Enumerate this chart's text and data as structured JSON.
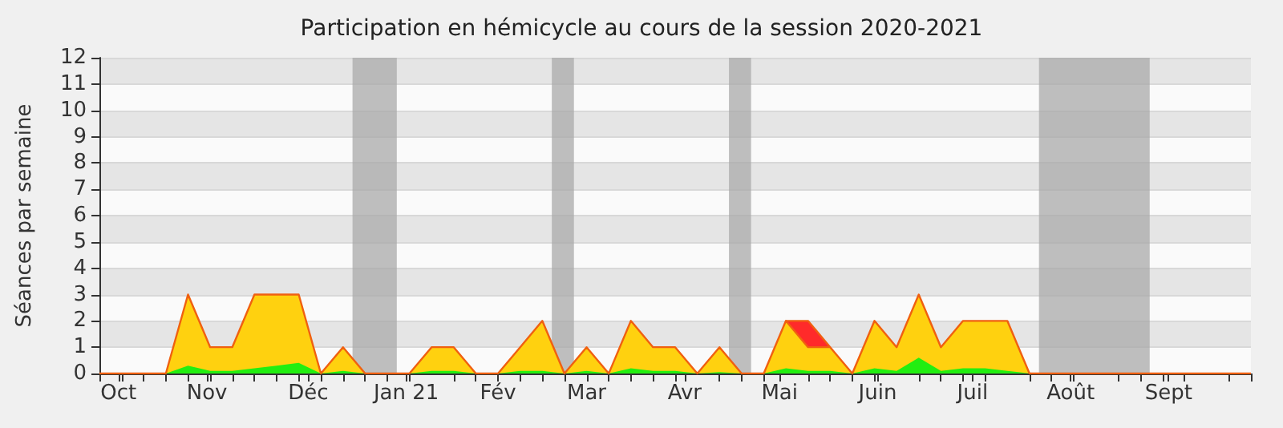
{
  "chart_data": {
    "type": "area",
    "stacked": true,
    "title": "Participation en hémicycle au cours de la session 2020-2021",
    "ylabel": "Séances par semaine",
    "x": [
      "2020-09-28",
      "2020-10-05",
      "2020-10-12",
      "2020-10-19",
      "2020-10-26",
      "2020-11-02",
      "2020-11-09",
      "2020-11-16",
      "2020-11-23",
      "2020-11-30",
      "2020-12-07",
      "2020-12-14",
      "2020-12-21",
      "2020-12-28",
      "2021-01-04",
      "2021-01-11",
      "2021-01-18",
      "2021-01-25",
      "2021-02-01",
      "2021-02-08",
      "2021-02-15",
      "2021-02-22",
      "2021-03-01",
      "2021-03-08",
      "2021-03-15",
      "2021-03-22",
      "2021-03-29",
      "2021-04-05",
      "2021-04-12",
      "2021-04-19",
      "2021-04-26",
      "2021-05-03",
      "2021-05-10",
      "2021-05-17",
      "2021-05-24",
      "2021-05-31",
      "2021-06-07",
      "2021-06-14",
      "2021-06-21",
      "2021-06-28",
      "2021-07-05",
      "2021-07-12",
      "2021-07-19",
      "2021-07-26",
      "2021-08-02",
      "2021-08-09",
      "2021-08-16",
      "2021-08-23",
      "2021-08-30",
      "2021-09-06",
      "2021-09-13",
      "2021-09-20",
      "2021-09-27"
    ],
    "series": [
      {
        "color": "#22ee11",
        "values": [
          0,
          0,
          0,
          0,
          0.3,
          0.1,
          0.1,
          0.2,
          0.3,
          0.4,
          0,
          0.1,
          0,
          0,
          0,
          0.1,
          0.1,
          0,
          0,
          0.1,
          0.1,
          0,
          0.1,
          0,
          0.2,
          0.1,
          0.1,
          0,
          0.05,
          0,
          0,
          0.2,
          0.1,
          0.1,
          0,
          0.2,
          0.1,
          0.6,
          0.1,
          0.2,
          0.2,
          0.1,
          0,
          0,
          0,
          0,
          0,
          0,
          0,
          0,
          0,
          0,
          0
        ]
      },
      {
        "color": "#ffd10f",
        "values": [
          0,
          0,
          0,
          0,
          2.7,
          0.9,
          0.9,
          2.8,
          2.7,
          2.6,
          0,
          0.9,
          0,
          0,
          0,
          0.9,
          0.9,
          0,
          0,
          0.9,
          1.9,
          0,
          0.9,
          0,
          1.8,
          0.9,
          0.9,
          0,
          0.95,
          0,
          0,
          1.8,
          0.9,
          0.9,
          0,
          1.8,
          0.9,
          2.4,
          0.9,
          1.8,
          1.8,
          1.9,
          0,
          0,
          0,
          0,
          0,
          0,
          0,
          0,
          0,
          0,
          0
        ]
      },
      {
        "color": "#ff2a2a",
        "values": [
          null,
          null,
          null,
          null,
          null,
          null,
          null,
          null,
          null,
          null,
          null,
          null,
          null,
          null,
          null,
          null,
          null,
          null,
          null,
          null,
          null,
          null,
          null,
          null,
          null,
          null,
          null,
          null,
          null,
          null,
          null,
          0,
          1,
          0,
          null,
          null,
          null,
          null,
          null,
          null,
          null,
          null,
          null,
          null,
          null,
          null,
          null,
          null,
          null,
          null,
          null,
          null,
          null
        ]
      }
    ],
    "xlim": [
      "2020-09-28",
      "2021-09-27"
    ],
    "xticks": [
      {
        "value": "2020-09-28",
        "label": null
      },
      {
        "value": "2020-10-05",
        "label": null
      },
      {
        "value": "2020-10-04",
        "label": "Oct"
      },
      {
        "value": "2020-10-12",
        "label": null
      },
      {
        "value": "2020-10-19",
        "label": null
      },
      {
        "value": "2020-10-26",
        "label": null
      },
      {
        "value": "2020-11-02",
        "label": null
      },
      {
        "value": "2020-11-01",
        "label": "Nov"
      },
      {
        "value": "2020-11-09",
        "label": null
      },
      {
        "value": "2020-11-16",
        "label": null
      },
      {
        "value": "2020-11-23",
        "label": null
      },
      {
        "value": "2020-11-30",
        "label": null
      },
      {
        "value": "2020-12-07",
        "label": null
      },
      {
        "value": "2020-12-03",
        "label": "Déc"
      },
      {
        "value": "2020-12-14",
        "label": null
      },
      {
        "value": "2020-12-21",
        "label": null
      },
      {
        "value": "2020-12-28",
        "label": null
      },
      {
        "value": "2021-01-04",
        "label": null
      },
      {
        "value": "2021-01-03",
        "label": "Jan 21"
      },
      {
        "value": "2021-01-18",
        "label": null
      },
      {
        "value": "2021-01-25",
        "label": null
      },
      {
        "value": "2021-02-01",
        "label": "Fév"
      },
      {
        "value": "2021-02-08",
        "label": null
      },
      {
        "value": "2021-02-15",
        "label": null
      },
      {
        "value": "2021-02-22",
        "label": null
      },
      {
        "value": "2021-03-01",
        "label": "Mar"
      },
      {
        "value": "2021-03-08",
        "label": null
      },
      {
        "value": "2021-03-15",
        "label": null
      },
      {
        "value": "2021-03-22",
        "label": null
      },
      {
        "value": "2021-03-29",
        "label": null
      },
      {
        "value": "2021-04-01",
        "label": "Avr"
      },
      {
        "value": "2021-04-12",
        "label": null
      },
      {
        "value": "2021-04-19",
        "label": null
      },
      {
        "value": "2021-04-26",
        "label": null
      },
      {
        "value": "2021-05-01",
        "label": "Mai"
      },
      {
        "value": "2021-05-10",
        "label": null
      },
      {
        "value": "2021-05-17",
        "label": null
      },
      {
        "value": "2021-05-24",
        "label": null
      },
      {
        "value": "2021-05-31",
        "label": null
      },
      {
        "value": "2021-06-01",
        "label": "Juin"
      },
      {
        "value": "2021-06-14",
        "label": null
      },
      {
        "value": "2021-06-21",
        "label": null
      },
      {
        "value": "2021-06-28",
        "label": null
      },
      {
        "value": "2021-07-05",
        "label": null
      },
      {
        "value": "2021-07-01",
        "label": "Juil"
      },
      {
        "value": "2021-07-19",
        "label": null
      },
      {
        "value": "2021-07-26",
        "label": null
      },
      {
        "value": "2021-08-02",
        "label": null
      },
      {
        "value": "2021-08-01",
        "label": "Août"
      },
      {
        "value": "2021-08-16",
        "label": null
      },
      {
        "value": "2021-08-23",
        "label": null
      },
      {
        "value": "2021-08-30",
        "label": null
      },
      {
        "value": "2021-09-06",
        "label": null
      },
      {
        "value": "2021-09-01",
        "label": "Sept"
      },
      {
        "value": "2021-09-20",
        "label": null
      },
      {
        "value": "2021-09-27",
        "label": null
      }
    ],
    "ylim": [
      0,
      12
    ],
    "yticks": [
      0,
      1,
      2,
      3,
      4,
      5,
      6,
      7,
      8,
      9,
      10,
      11,
      12
    ],
    "bands": [
      {
        "axis": "x",
        "from": "2020-12-17",
        "to": "2020-12-31",
        "color": "#aaaaaa"
      },
      {
        "axis": "x",
        "from": "2021-02-18",
        "to": "2021-02-25",
        "color": "#aaaaaa"
      },
      {
        "axis": "x",
        "from": "2021-04-15",
        "to": "2021-04-22",
        "color": "#aaaaaa"
      },
      {
        "axis": "x",
        "from": "2021-07-22",
        "to": "2021-08-26",
        "color": "#aaaaaa"
      }
    ],
    "grid": "y"
  }
}
